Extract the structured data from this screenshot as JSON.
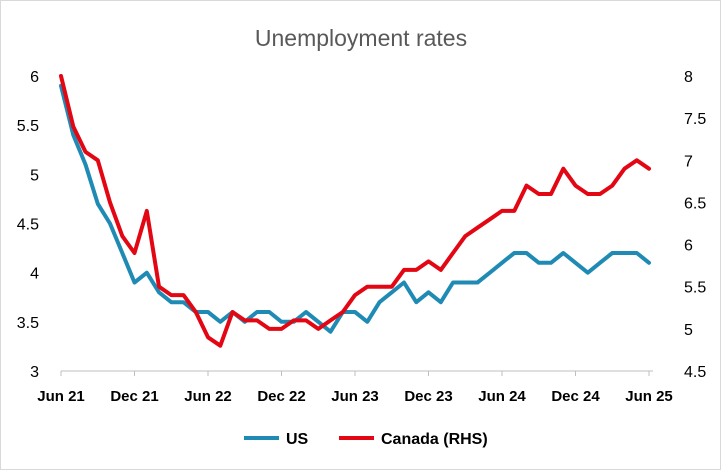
{
  "chart_data": {
    "type": "line",
    "title": "Unemployment rates",
    "x_tick_labels": [
      "Jun 21",
      "Dec 21",
      "Jun 22",
      "Dec 22",
      "Jun 23",
      "Dec 23",
      "Jun 24",
      "Dec 24",
      "Jun 25"
    ],
    "y_left": {
      "min": 3,
      "max": 6,
      "ticks": [
        "3",
        "3.5",
        "4",
        "4.5",
        "5",
        "5.5",
        "6"
      ]
    },
    "y_right": {
      "min": 4.5,
      "max": 8,
      "ticks": [
        "4.5",
        "5",
        "5.5",
        "6",
        "6.5",
        "7",
        "7.5",
        "8"
      ]
    },
    "grid": false,
    "legend_position": "bottom",
    "x_start": "2021-06",
    "series": [
      {
        "name": "US",
        "axis": "left",
        "color": "#1f8bb5",
        "values": [
          5.9,
          5.4,
          5.1,
          4.7,
          4.5,
          4.2,
          3.9,
          4.0,
          3.8,
          3.7,
          3.7,
          3.6,
          3.6,
          3.5,
          3.6,
          3.5,
          3.6,
          3.6,
          3.5,
          3.5,
          3.6,
          3.5,
          3.4,
          3.6,
          3.6,
          3.5,
          3.7,
          3.8,
          3.9,
          3.7,
          3.8,
          3.7,
          3.9,
          3.9,
          3.9,
          4.0,
          4.1,
          4.2,
          4.2,
          4.1,
          4.1,
          4.2,
          4.1,
          4.0,
          4.1,
          4.2,
          4.2,
          4.2,
          4.1
        ]
      },
      {
        "name": "Canada (RHS)",
        "axis": "right",
        "color": "#e30613",
        "values": [
          8.0,
          7.4,
          7.1,
          7.0,
          6.5,
          6.1,
          5.9,
          6.4,
          5.5,
          5.4,
          5.4,
          5.2,
          4.9,
          4.8,
          5.2,
          5.1,
          5.1,
          5.0,
          5.0,
          5.1,
          5.1,
          5.0,
          5.1,
          5.2,
          5.4,
          5.5,
          5.5,
          5.5,
          5.7,
          5.7,
          5.8,
          5.7,
          5.9,
          6.1,
          6.2,
          6.3,
          6.4,
          6.4,
          6.7,
          6.6,
          6.6,
          6.9,
          6.7,
          6.6,
          6.6,
          6.7,
          6.9,
          7.0,
          6.9
        ]
      }
    ]
  }
}
